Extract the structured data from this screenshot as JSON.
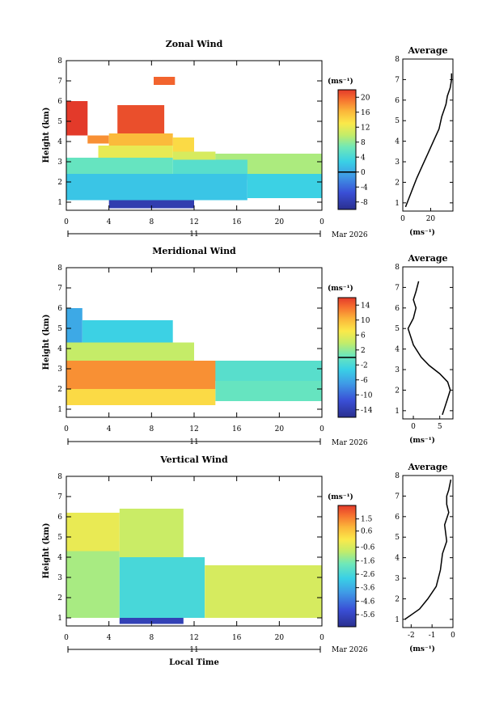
{
  "panels": [
    {
      "id": "zonal",
      "title": "Zonal Wind",
      "ylabel": "Height (km)",
      "unit": "(ms⁻¹)",
      "colorbar_ticks": [
        "20",
        "16",
        "12",
        "8",
        "4",
        "0",
        "-4",
        "-8"
      ],
      "date_day": "11",
      "date_month": "Mar 2026",
      "avg_title": "Average",
      "avg_unit": "(ms⁻¹)",
      "avg_xticks": [
        "0",
        "20"
      ]
    },
    {
      "id": "meridional",
      "title": "Meridional Wind",
      "ylabel": "Height (km)",
      "unit": "(ms⁻¹)",
      "colorbar_ticks": [
        "14",
        "10",
        "6",
        "2",
        "-2",
        "-6",
        "-10",
        "-14"
      ],
      "date_day": "11",
      "date_month": "Mar 2026",
      "avg_title": "Average",
      "avg_unit": "(ms⁻¹)",
      "avg_xticks": [
        "0",
        "5"
      ]
    },
    {
      "id": "vertical",
      "title": "Vertical Wind",
      "ylabel": "Height (km)",
      "unit": "(ms⁻¹)",
      "colorbar_ticks": [
        "1.5",
        "0.6",
        "-0.6",
        "-1.6",
        "-2.6",
        "-3.6",
        "-4.6",
        "-5.6"
      ],
      "date_day": "11",
      "date_month": "Mar 2026",
      "avg_title": "Average",
      "avg_unit": "(ms⁻¹)",
      "avg_xticks": [
        "-2",
        "-1",
        "0"
      ]
    }
  ],
  "xlabel": "Local Time",
  "chart_data": [
    {
      "type": "heatmap",
      "title": "Zonal Wind",
      "xlabel": "",
      "ylabel": "Height (km)",
      "x_ticks": [
        "0",
        "4",
        "8",
        "12",
        "16",
        "20",
        "0"
      ],
      "xlim": [
        0,
        24
      ],
      "y_ticks": [
        "1",
        "2",
        "3",
        "4",
        "5",
        "6",
        "7",
        "8"
      ],
      "ylim": [
        0.6,
        8
      ],
      "colorbar": {
        "unit": "(ms⁻¹)",
        "ticks": [
          20,
          16,
          12,
          8,
          4,
          0,
          -4,
          -8
        ],
        "range": [
          -10,
          22
        ],
        "zero_line": true
      },
      "regions": [
        {
          "t0": 0,
          "t1": 2,
          "h0": 4.3,
          "h1": 6.0,
          "value": 22
        },
        {
          "t0": 4.8,
          "t1": 9.2,
          "h0": 4.4,
          "h1": 5.8,
          "value": 21
        },
        {
          "t0": 8.2,
          "t1": 10.2,
          "h0": 6.8,
          "h1": 7.2,
          "value": 20
        },
        {
          "t0": 2,
          "t1": 4,
          "h0": 3.9,
          "h1": 4.3,
          "value": 18
        },
        {
          "t0": 4,
          "t1": 10,
          "h0": 3.8,
          "h1": 4.4,
          "value": 16
        },
        {
          "t0": 10,
          "t1": 12,
          "h0": 3.5,
          "h1": 4.2,
          "value": 14
        },
        {
          "t0": 3,
          "t1": 10,
          "h0": 3.2,
          "h1": 3.8,
          "value": 12
        },
        {
          "t0": 10,
          "t1": 14,
          "h0": 3.1,
          "h1": 3.5,
          "value": 11
        },
        {
          "t0": 14,
          "t1": 24,
          "h0": 2.4,
          "h1": 3.4,
          "value": 9
        },
        {
          "t0": 0,
          "t1": 10,
          "h0": 2.4,
          "h1": 3.2,
          "value": 6
        },
        {
          "t0": 10,
          "t1": 17,
          "h0": 2.1,
          "h1": 3.1,
          "value": 5
        },
        {
          "t0": 0,
          "t1": 17,
          "h0": 1.1,
          "h1": 2.4,
          "value": 2
        },
        {
          "t0": 17,
          "t1": 24,
          "h0": 1.2,
          "h1": 2.4,
          "value": 3
        },
        {
          "t0": 4,
          "t1": 12,
          "h0": 0.7,
          "h1": 1.1,
          "value": -8
        }
      ],
      "average_profile": {
        "title": "Average",
        "xlabel": "(ms⁻¹)",
        "x_ticks": [
          0,
          20
        ],
        "xlim": [
          0,
          36
        ],
        "x": [
          2,
          6,
          10,
          14,
          18,
          22,
          26,
          28,
          30,
          31,
          32,
          34,
          35,
          35
        ],
        "y": [
          0.8,
          1.5,
          2.2,
          2.8,
          3.4,
          4.0,
          4.6,
          5.2,
          5.6,
          5.8,
          6.2,
          6.6,
          7.0,
          7.3
        ]
      }
    },
    {
      "type": "heatmap",
      "title": "Meridional Wind",
      "xlabel": "",
      "ylabel": "Height (km)",
      "x_ticks": [
        "0",
        "4",
        "8",
        "12",
        "16",
        "20",
        "0"
      ],
      "xlim": [
        0,
        24
      ],
      "y_ticks": [
        "1",
        "2",
        "3",
        "4",
        "5",
        "6",
        "7",
        "8"
      ],
      "ylim": [
        0.6,
        8
      ],
      "colorbar": {
        "unit": "(ms⁻¹)",
        "ticks": [
          14,
          10,
          6,
          2,
          -2,
          -6,
          -10,
          -14
        ],
        "range": [
          -16,
          16
        ],
        "zero_line": true
      },
      "regions": [
        {
          "t0": 0,
          "t1": 1.5,
          "h0": 4.3,
          "h1": 6.0,
          "value": -6
        },
        {
          "t0": 1.5,
          "t1": 10,
          "h0": 4.3,
          "h1": 5.4,
          "value": -3
        },
        {
          "t0": 0,
          "t1": 12,
          "h0": 3.4,
          "h1": 4.3,
          "value": 4
        },
        {
          "t0": 12,
          "t1": 24,
          "h0": 2.4,
          "h1": 3.4,
          "value": -1
        },
        {
          "t0": 0,
          "t1": 14,
          "h0": 2.0,
          "h1": 3.4,
          "value": 12
        },
        {
          "t0": 14,
          "t1": 24,
          "h0": 1.4,
          "h1": 2.4,
          "value": 0
        },
        {
          "t0": 0,
          "t1": 14,
          "h0": 1.2,
          "h1": 2.0,
          "value": 8
        }
      ],
      "average_profile": {
        "title": "Average",
        "xlabel": "(ms⁻¹)",
        "x_ticks": [
          0,
          5
        ],
        "xlim": [
          -2,
          7.5
        ],
        "x": [
          1.0,
          0.5,
          0,
          0.5,
          0,
          -1,
          0,
          1.5,
          3,
          5,
          6.5,
          7,
          6.5,
          6,
          5.5
        ],
        "y": [
          7.3,
          6.8,
          6.4,
          6.0,
          5.5,
          5.0,
          4.2,
          3.6,
          3.2,
          2.8,
          2.4,
          2.0,
          1.6,
          1.2,
          0.8
        ]
      }
    },
    {
      "type": "heatmap",
      "title": "Vertical Wind",
      "xlabel": "Local Time",
      "ylabel": "Height (km)",
      "x_ticks": [
        "0",
        "4",
        "8",
        "12",
        "16",
        "20",
        "0"
      ],
      "xlim": [
        0,
        24
      ],
      "y_ticks": [
        "1",
        "2",
        "3",
        "4",
        "5",
        "6",
        "7",
        "8"
      ],
      "ylim": [
        0.6,
        8
      ],
      "colorbar": {
        "unit": "(ms⁻¹)",
        "ticks": [
          1.5,
          0.6,
          -0.6,
          -1.6,
          -2.6,
          -3.6,
          -4.6,
          -5.6
        ],
        "range": [
          -6.5,
          2.5
        ],
        "zero_line": false
      },
      "regions": [
        {
          "t0": 0,
          "t1": 5,
          "h0": 4.3,
          "h1": 6.2,
          "value": -0.3
        },
        {
          "t0": 5,
          "t1": 11,
          "h0": 4.0,
          "h1": 6.4,
          "value": -0.8
        },
        {
          "t0": 0,
          "t1": 5,
          "h0": 1.0,
          "h1": 4.3,
          "value": -1.2
        },
        {
          "t0": 5,
          "t1": 13,
          "h0": 1.0,
          "h1": 4.0,
          "value": -2.6
        },
        {
          "t0": 13,
          "t1": 24,
          "h0": 1.0,
          "h1": 3.6,
          "value": -0.6
        },
        {
          "t0": 5,
          "t1": 11,
          "h0": 0.7,
          "h1": 1.0,
          "value": -5.8
        }
      ],
      "average_profile": {
        "title": "Average",
        "xlabel": "(ms⁻¹)",
        "x_ticks": [
          -2,
          -1,
          0
        ],
        "xlim": [
          -2.4,
          0
        ],
        "x": [
          -0.1,
          -0.2,
          -0.3,
          -0.3,
          -0.2,
          -0.4,
          -0.3,
          -0.5,
          -0.6,
          -0.8,
          -1.2,
          -1.6,
          -2.3
        ],
        "y": [
          7.8,
          7.3,
          7.0,
          6.6,
          6.2,
          5.6,
          4.8,
          4.2,
          3.4,
          2.6,
          2.0,
          1.5,
          1.0
        ]
      }
    }
  ]
}
